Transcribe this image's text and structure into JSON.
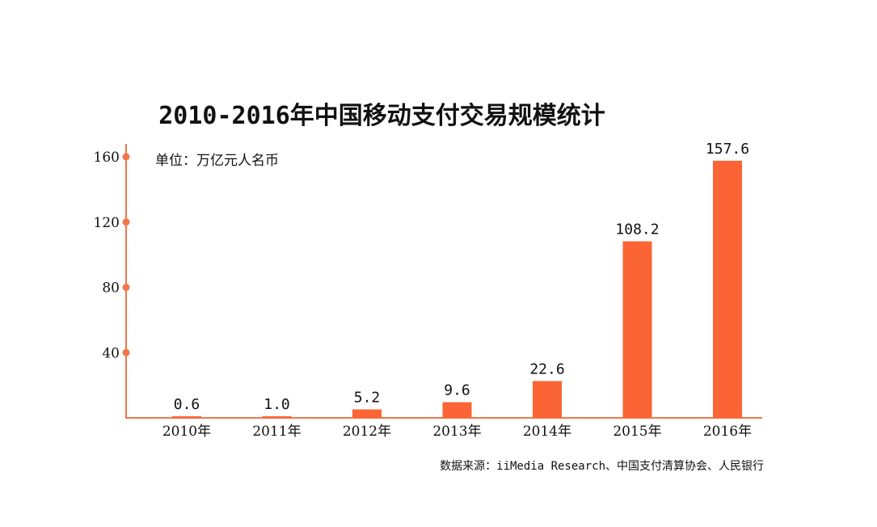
{
  "chart_data": {
    "type": "bar",
    "title": "2010-2016年中国移动支付交易规模统计",
    "unit": "单位：万亿元人名币",
    "source": "数据来源：iiMedia Research、中国支付清算协会、人民银行",
    "categories": [
      "2010年",
      "2011年",
      "2012年",
      "2013年",
      "2014年",
      "2015年",
      "2016年"
    ],
    "values": [
      0.6,
      1.0,
      5.2,
      9.6,
      22.6,
      108.2,
      157.6
    ],
    "data_labels": [
      "0.6",
      "1.0",
      "5.2",
      "9.6",
      "22.6",
      "108.2",
      "157.6"
    ],
    "yticks": [
      40,
      80,
      120,
      160
    ],
    "ytick_labels": [
      "40",
      "80",
      "120",
      "160"
    ],
    "ylim": [
      0,
      160
    ],
    "grid": false,
    "colors": {
      "bar": "#FB6535",
      "axis": "#F47548"
    }
  }
}
